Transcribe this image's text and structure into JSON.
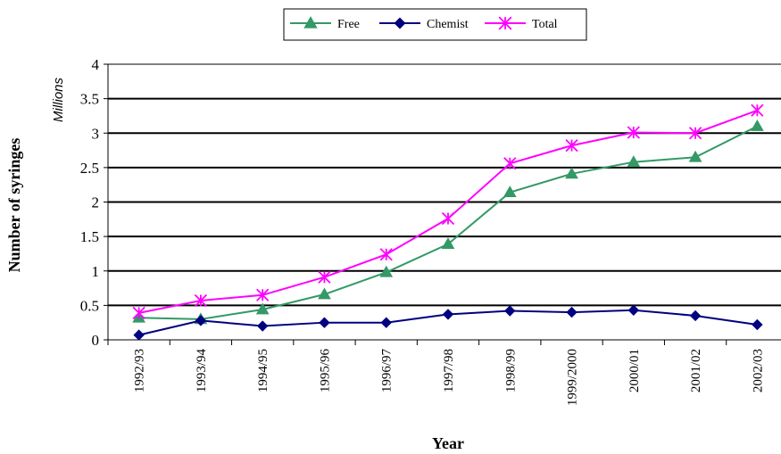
{
  "chart_data": {
    "type": "line",
    "title": "",
    "xlabel": "Year",
    "ylabel": "Number of syringes",
    "yunits": "Millions",
    "ylim": [
      0,
      4
    ],
    "yticks": [
      "0",
      "0.5",
      "1",
      "1.5",
      "2",
      "2.5",
      "3",
      "3.5",
      "4"
    ],
    "ytick_values": [
      0,
      0.5,
      1,
      1.5,
      2,
      2.5,
      3,
      3.5,
      4
    ],
    "grid": true,
    "legend_position": "top-center",
    "categories": [
      "1992/93",
      "1993/94",
      "1994/95",
      "1995/96",
      "1996/97",
      "1997/98",
      "1998/99",
      "1999/2000",
      "2000/01",
      "2001/02",
      "2002/03"
    ],
    "series": [
      {
        "name": "Free",
        "marker": "triangle",
        "color": "#339966",
        "values": [
          0.32,
          0.3,
          0.44,
          0.66,
          0.98,
          1.39,
          2.14,
          2.41,
          2.58,
          2.65,
          3.1
        ]
      },
      {
        "name": "Chemist",
        "marker": "diamond",
        "color": "#000080",
        "values": [
          0.07,
          0.28,
          0.2,
          0.25,
          0.25,
          0.37,
          0.42,
          0.4,
          0.43,
          0.35,
          0.22
        ]
      },
      {
        "name": "Total",
        "marker": "asterisk",
        "color": "#FF00FF",
        "values": [
          0.39,
          0.57,
          0.65,
          0.91,
          1.24,
          1.76,
          2.56,
          2.82,
          3.01,
          3.0,
          3.33
        ]
      }
    ]
  }
}
